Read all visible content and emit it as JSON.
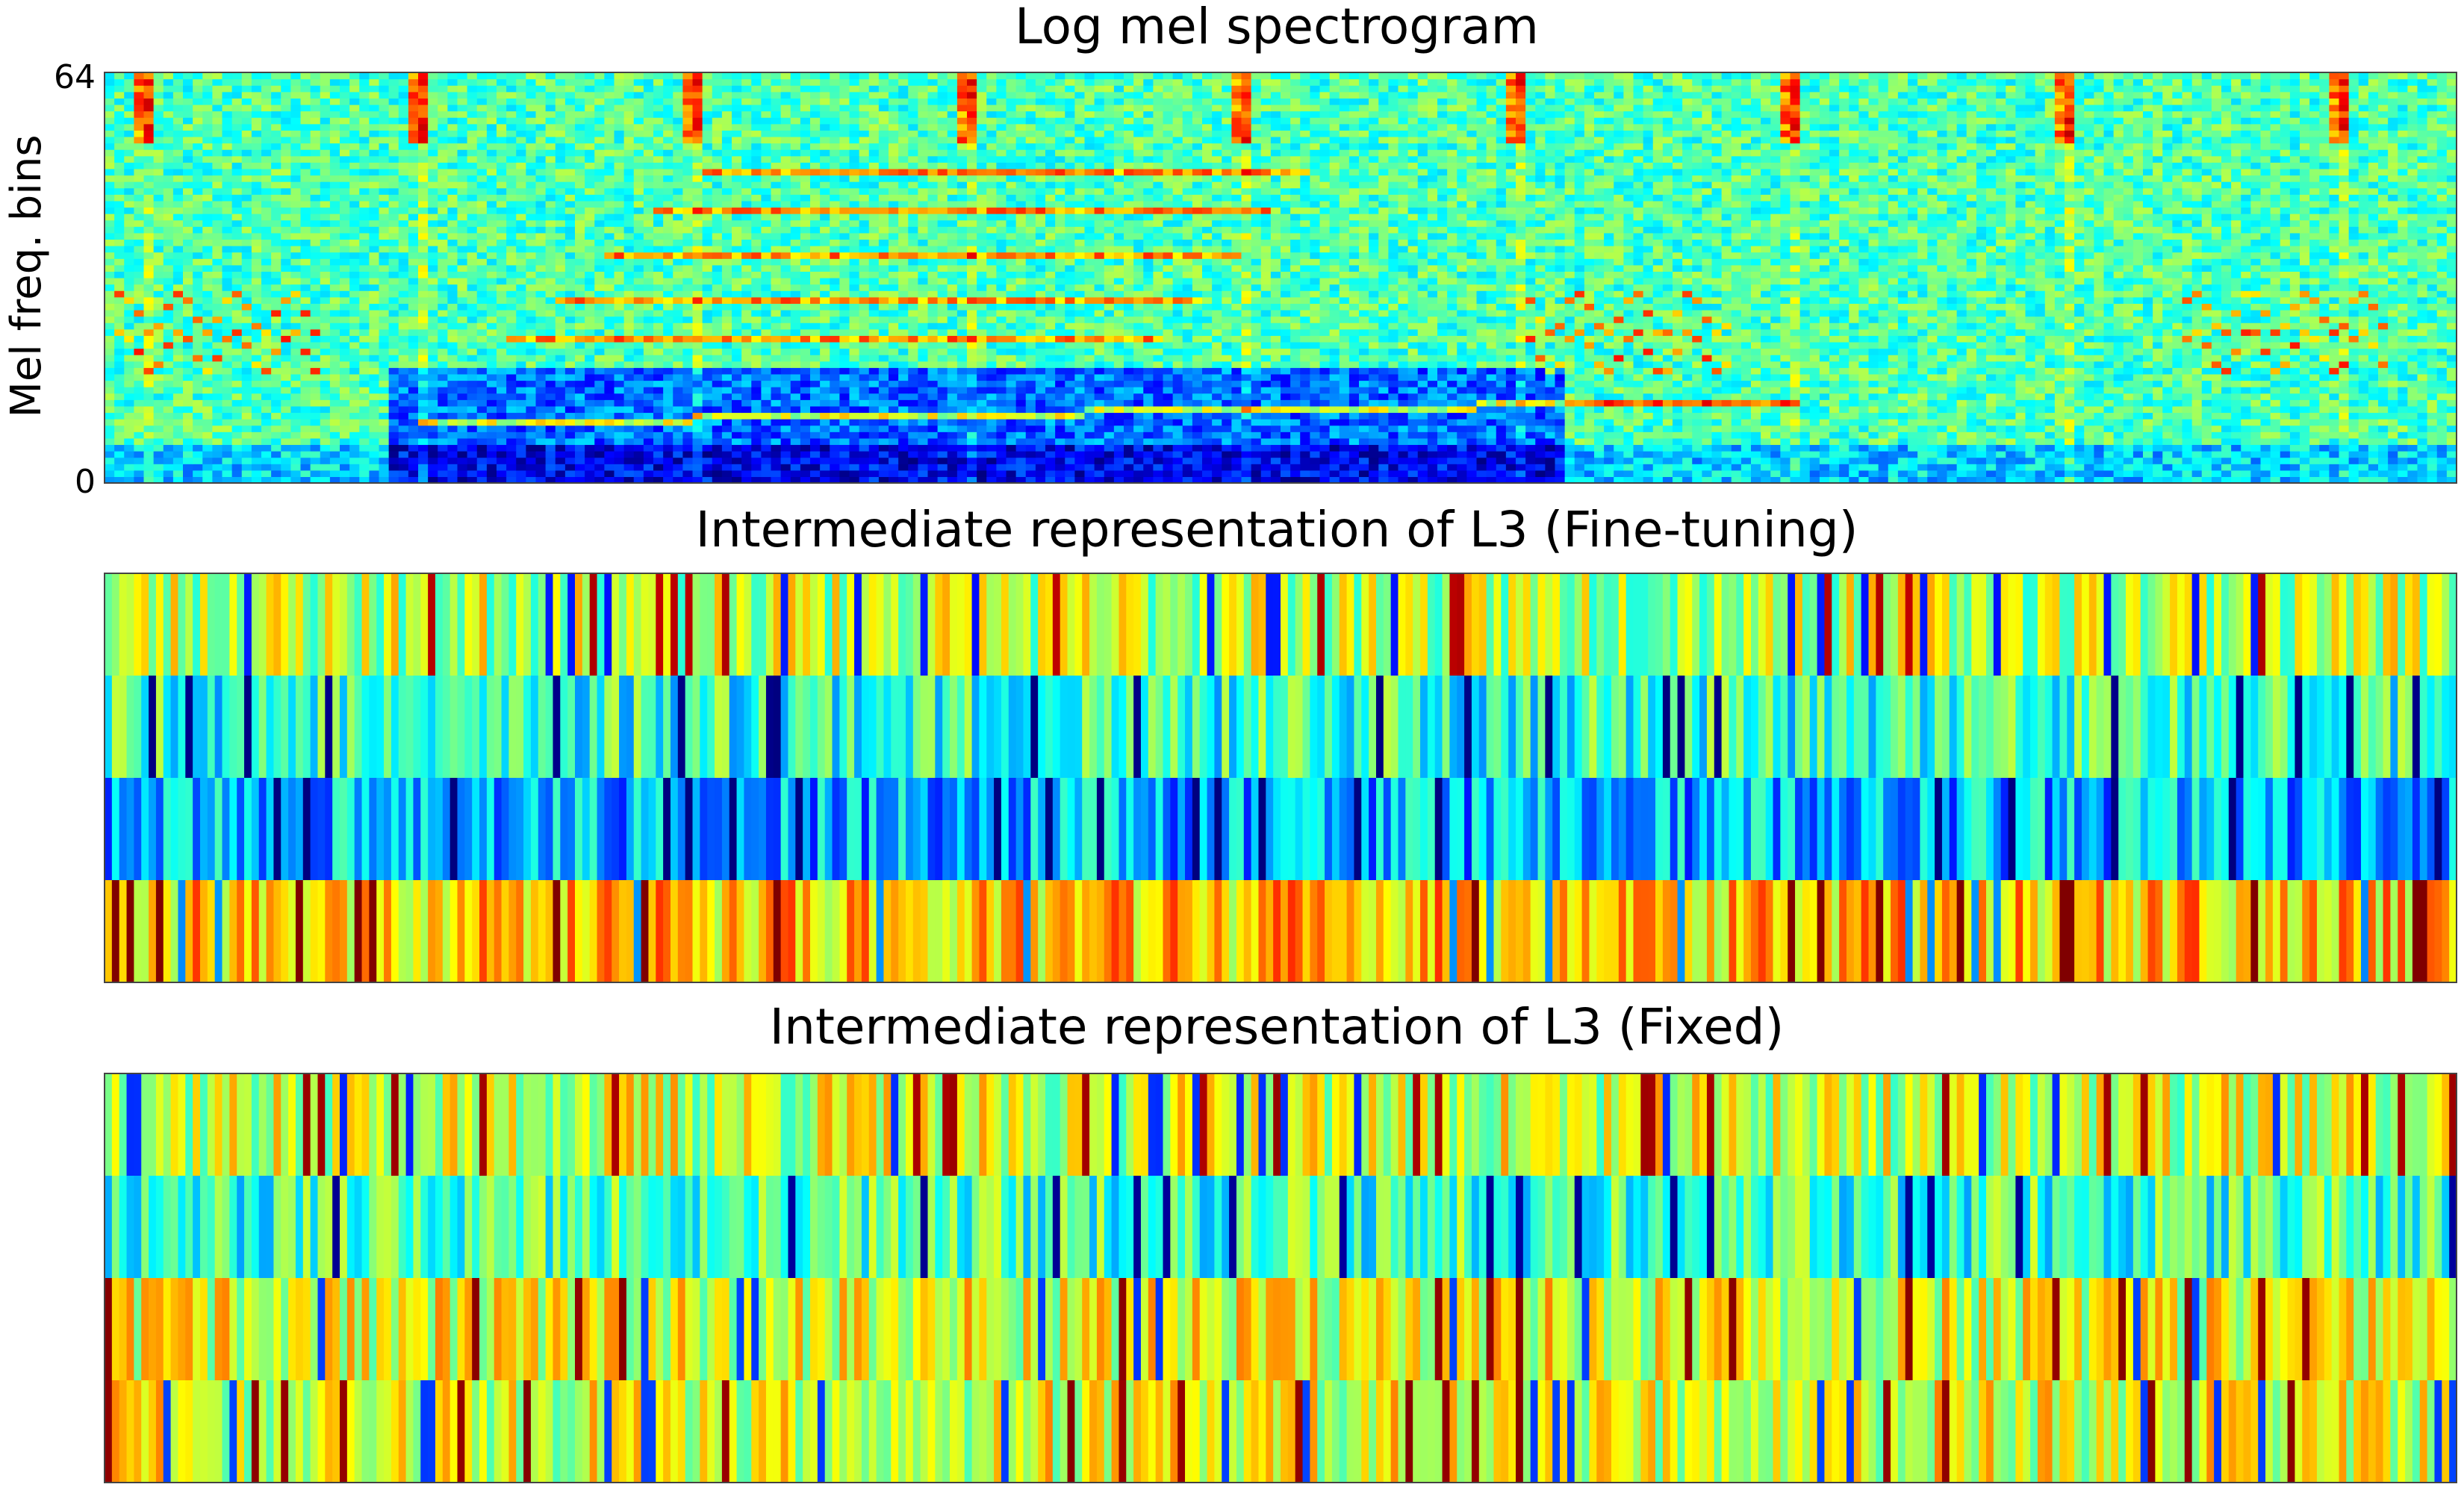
{
  "colormap": "jet",
  "colors": {
    "frame": "#444444",
    "text": "#000000",
    "background": "#ffffff"
  },
  "chart_data": [
    {
      "type": "heatmap",
      "title": "Log mel spectrogram",
      "ylabel": "Mel freq. bins",
      "xlabel": "",
      "yticks": [
        "0",
        "64"
      ],
      "rows": 64,
      "cols": 240,
      "layout": "spectrogram",
      "seed": 11
    },
    {
      "type": "heatmap",
      "title": "Intermediate representation of L3 (Fine-tuning)",
      "ylabel": "",
      "xlabel": "",
      "yticks": [],
      "rows": 4,
      "cols": 320,
      "layout": "bands",
      "seed": 23,
      "row_bias": [
        0.56,
        0.42,
        0.3,
        0.68
      ]
    },
    {
      "type": "heatmap",
      "title": "Intermediate representation of L3 (Fixed)",
      "ylabel": "",
      "xlabel": "",
      "yticks": [],
      "rows": 4,
      "cols": 320,
      "layout": "bands",
      "seed": 37,
      "row_bias": [
        0.58,
        0.44,
        0.6,
        0.6
      ]
    }
  ]
}
